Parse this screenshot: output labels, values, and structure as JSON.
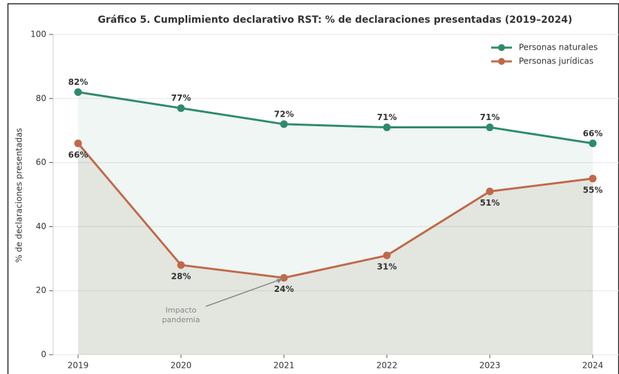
{
  "chart_data": {
    "type": "line",
    "title": "Gráfico 5. Cumplimiento declarativo RST: % de declaraciones presentadas (2019–2024)",
    "ylabel": "% de declaraciones presentadas",
    "categories": [
      "2019",
      "2020",
      "2021",
      "2022",
      "2023",
      "2024"
    ],
    "series": [
      {
        "name": "Personas naturales",
        "color": "#2e8b6a",
        "values": [
          82,
          77,
          72,
          71,
          71,
          66
        ],
        "value_labels": [
          "82%",
          "77%",
          "72%",
          "71%",
          "71%",
          "66%"
        ]
      },
      {
        "name": "Personas jurídicas",
        "color": "#c0694a",
        "values": [
          66,
          28,
          24,
          31,
          51,
          55
        ],
        "value_labels": [
          "66%",
          "28%",
          "24%",
          "31%",
          "51%",
          "55%"
        ]
      }
    ],
    "ylim": [
      0,
      100
    ],
    "yticks": [
      0,
      20,
      40,
      60,
      80,
      100
    ],
    "grid": true,
    "legend": "upper right",
    "annotation": [
      "Impacto",
      "pandemia"
    ]
  }
}
